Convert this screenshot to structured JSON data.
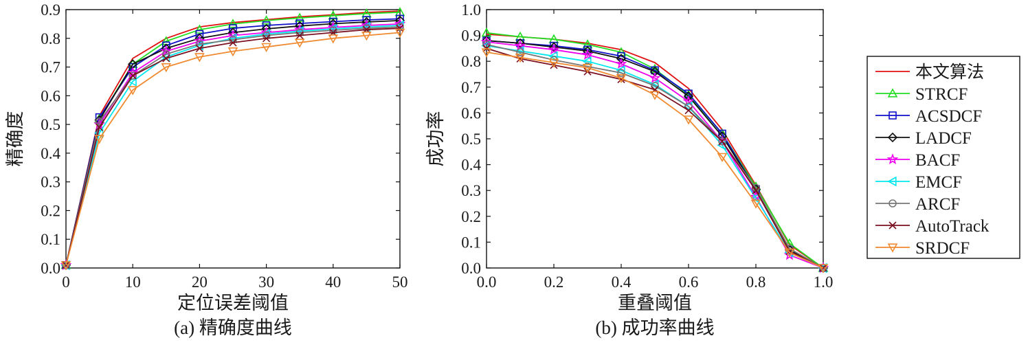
{
  "colors": {
    "本文算法": "#e01010",
    "STRCF": "#22dd22",
    "ACSDCF": "#1010c8",
    "LADCF": "#111111",
    "BACF": "#ee00ee",
    "EMCF": "#00e8ee",
    "ARCF": "#777777",
    "AutoTrack": "#7a1020",
    "SRDCF": "#f08a30"
  },
  "legend": [
    {
      "name": "本文算法",
      "marker": "none"
    },
    {
      "name": "STRCF",
      "marker": "triangle-up"
    },
    {
      "name": "ACSDCF",
      "marker": "square"
    },
    {
      "name": "LADCF",
      "marker": "diamond"
    },
    {
      "name": "BACF",
      "marker": "star"
    },
    {
      "name": "EMCF",
      "marker": "triangle-left"
    },
    {
      "name": "ARCF",
      "marker": "circle"
    },
    {
      "name": "AutoTrack",
      "marker": "x"
    },
    {
      "name": "SRDCF",
      "marker": "triangle-down"
    }
  ],
  "chart_data": [
    {
      "type": "line",
      "caption": "(a) 精确度曲线",
      "xlabel": "定位误差阈值",
      "ylabel": "精确度",
      "xlim": [
        0,
        50
      ],
      "ylim": [
        0,
        0.9
      ],
      "xticks": [
        "0",
        "10",
        "20",
        "30",
        "40",
        "50"
      ],
      "yticks": [
        "0.0",
        "0.1",
        "0.2",
        "0.3",
        "0.4",
        "0.5",
        "0.6",
        "0.7",
        "0.8",
        "0.9"
      ],
      "x": [
        0,
        5,
        10,
        15,
        20,
        25,
        30,
        35,
        40,
        45,
        50
      ],
      "series": [
        {
          "name": "本文算法",
          "values": [
            0.01,
            0.53,
            0.73,
            0.8,
            0.84,
            0.855,
            0.865,
            0.875,
            0.882,
            0.89,
            0.895
          ]
        },
        {
          "name": "STRCF",
          "values": [
            0.01,
            0.52,
            0.71,
            0.79,
            0.83,
            0.85,
            0.862,
            0.871,
            0.879,
            0.886,
            0.891
          ]
        },
        {
          "name": "ACSDCF",
          "values": [
            0.01,
            0.525,
            0.7,
            0.775,
            0.815,
            0.835,
            0.845,
            0.852,
            0.858,
            0.864,
            0.868
          ]
        },
        {
          "name": "LADCF",
          "values": [
            0.01,
            0.515,
            0.71,
            0.765,
            0.8,
            0.82,
            0.833,
            0.843,
            0.851,
            0.857,
            0.862
          ]
        },
        {
          "name": "BACF",
          "values": [
            0.01,
            0.5,
            0.68,
            0.755,
            0.79,
            0.81,
            0.82,
            0.83,
            0.838,
            0.845,
            0.85
          ]
        },
        {
          "name": "EMCF",
          "values": [
            0.01,
            0.47,
            0.65,
            0.735,
            0.775,
            0.8,
            0.815,
            0.825,
            0.833,
            0.84,
            0.845
          ]
        },
        {
          "name": "ARCF",
          "values": [
            0.01,
            0.51,
            0.67,
            0.745,
            0.78,
            0.795,
            0.81,
            0.82,
            0.828,
            0.835,
            0.84
          ]
        },
        {
          "name": "AutoTrack",
          "values": [
            0.01,
            0.49,
            0.67,
            0.73,
            0.765,
            0.785,
            0.8,
            0.81,
            0.82,
            0.83,
            0.835
          ]
        },
        {
          "name": "SRDCF",
          "values": [
            0.01,
            0.45,
            0.62,
            0.7,
            0.735,
            0.755,
            0.77,
            0.785,
            0.8,
            0.81,
            0.82
          ]
        }
      ]
    },
    {
      "type": "line",
      "caption": "(b) 成功率曲线",
      "xlabel": "重叠阈值",
      "ylabel": "成功率",
      "xlim": [
        0,
        1
      ],
      "ylim": [
        0,
        1
      ],
      "xticks": [
        "0.0",
        "0.2",
        "0.4",
        "0.6",
        "0.8",
        "1.0"
      ],
      "yticks": [
        "0.0",
        "0.1",
        "0.2",
        "0.3",
        "0.4",
        "0.5",
        "0.6",
        "0.7",
        "0.8",
        "0.9",
        "1.0"
      ],
      "x": [
        0,
        0.1,
        0.2,
        0.3,
        0.4,
        0.5,
        0.6,
        0.7,
        0.8,
        0.9,
        1.0
      ],
      "series": [
        {
          "name": "本文算法",
          "values": [
            0.905,
            0.895,
            0.885,
            0.87,
            0.845,
            0.795,
            0.695,
            0.535,
            0.32,
            0.09,
            0.0
          ]
        },
        {
          "name": "STRCF",
          "values": [
            0.91,
            0.895,
            0.885,
            0.865,
            0.835,
            0.77,
            0.67,
            0.52,
            0.315,
            0.095,
            0.0
          ]
        },
        {
          "name": "ACSDCF",
          "values": [
            0.88,
            0.87,
            0.86,
            0.845,
            0.82,
            0.765,
            0.675,
            0.52,
            0.305,
            0.07,
            0.0
          ]
        },
        {
          "name": "LADCF",
          "values": [
            0.88,
            0.87,
            0.855,
            0.84,
            0.81,
            0.76,
            0.665,
            0.51,
            0.305,
            0.07,
            0.0
          ]
        },
        {
          "name": "BACF",
          "values": [
            0.875,
            0.86,
            0.845,
            0.825,
            0.79,
            0.735,
            0.645,
            0.49,
            0.275,
            0.05,
            0.0
          ]
        },
        {
          "name": "EMCF",
          "values": [
            0.86,
            0.84,
            0.82,
            0.8,
            0.765,
            0.71,
            0.625,
            0.475,
            0.27,
            0.06,
            0.0
          ]
        },
        {
          "name": "ARCF",
          "values": [
            0.865,
            0.835,
            0.805,
            0.78,
            0.755,
            0.705,
            0.625,
            0.49,
            0.31,
            0.075,
            0.0
          ]
        },
        {
          "name": "AutoTrack",
          "values": [
            0.85,
            0.81,
            0.785,
            0.76,
            0.73,
            0.69,
            0.61,
            0.49,
            0.3,
            0.065,
            0.0
          ]
        },
        {
          "name": "SRDCF",
          "values": [
            0.835,
            0.815,
            0.795,
            0.775,
            0.735,
            0.67,
            0.575,
            0.43,
            0.25,
            0.06,
            0.0
          ]
        }
      ]
    }
  ]
}
